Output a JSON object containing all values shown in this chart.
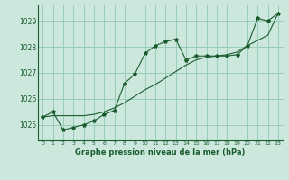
{
  "background_color": "#cce8dd",
  "grid_color": "#99ccbb",
  "line_color": "#1a5c2e",
  "title": "Graphe pression niveau de la mer (hPa)",
  "xlabel_hours": [
    0,
    1,
    2,
    3,
    4,
    5,
    6,
    7,
    8,
    9,
    10,
    11,
    12,
    13,
    14,
    15,
    16,
    17,
    18,
    19,
    20,
    21,
    22,
    23
  ],
  "ylim": [
    1024.4,
    1029.6
  ],
  "yticks": [
    1025,
    1026,
    1027,
    1028,
    1029
  ],
  "line1_x": [
    0,
    1,
    2,
    3,
    4,
    5,
    6,
    7,
    8,
    9,
    10,
    11,
    12,
    13,
    14,
    15,
    16,
    17,
    18,
    19,
    20,
    21,
    22,
    23
  ],
  "line1_y": [
    1025.3,
    1025.5,
    1024.8,
    1024.9,
    1025.0,
    1025.15,
    1025.4,
    1025.55,
    1026.6,
    1026.95,
    1027.75,
    1028.05,
    1028.2,
    1028.3,
    1027.5,
    1027.65,
    1027.65,
    1027.65,
    1027.65,
    1027.7,
    1028.05,
    1029.1,
    1029.0,
    1029.3
  ],
  "line2_x": [
    0,
    1,
    2,
    3,
    4,
    5,
    6,
    7,
    8,
    9,
    10,
    11,
    12,
    13,
    14,
    15,
    16,
    17,
    18,
    19,
    20,
    21,
    22,
    23
  ],
  "line2_y": [
    1025.3,
    1025.35,
    1025.35,
    1025.35,
    1025.35,
    1025.4,
    1025.5,
    1025.65,
    1025.85,
    1026.1,
    1026.35,
    1026.55,
    1026.8,
    1027.05,
    1027.3,
    1027.5,
    1027.6,
    1027.65,
    1027.7,
    1027.8,
    1028.05,
    1028.25,
    1028.45,
    1029.3
  ]
}
